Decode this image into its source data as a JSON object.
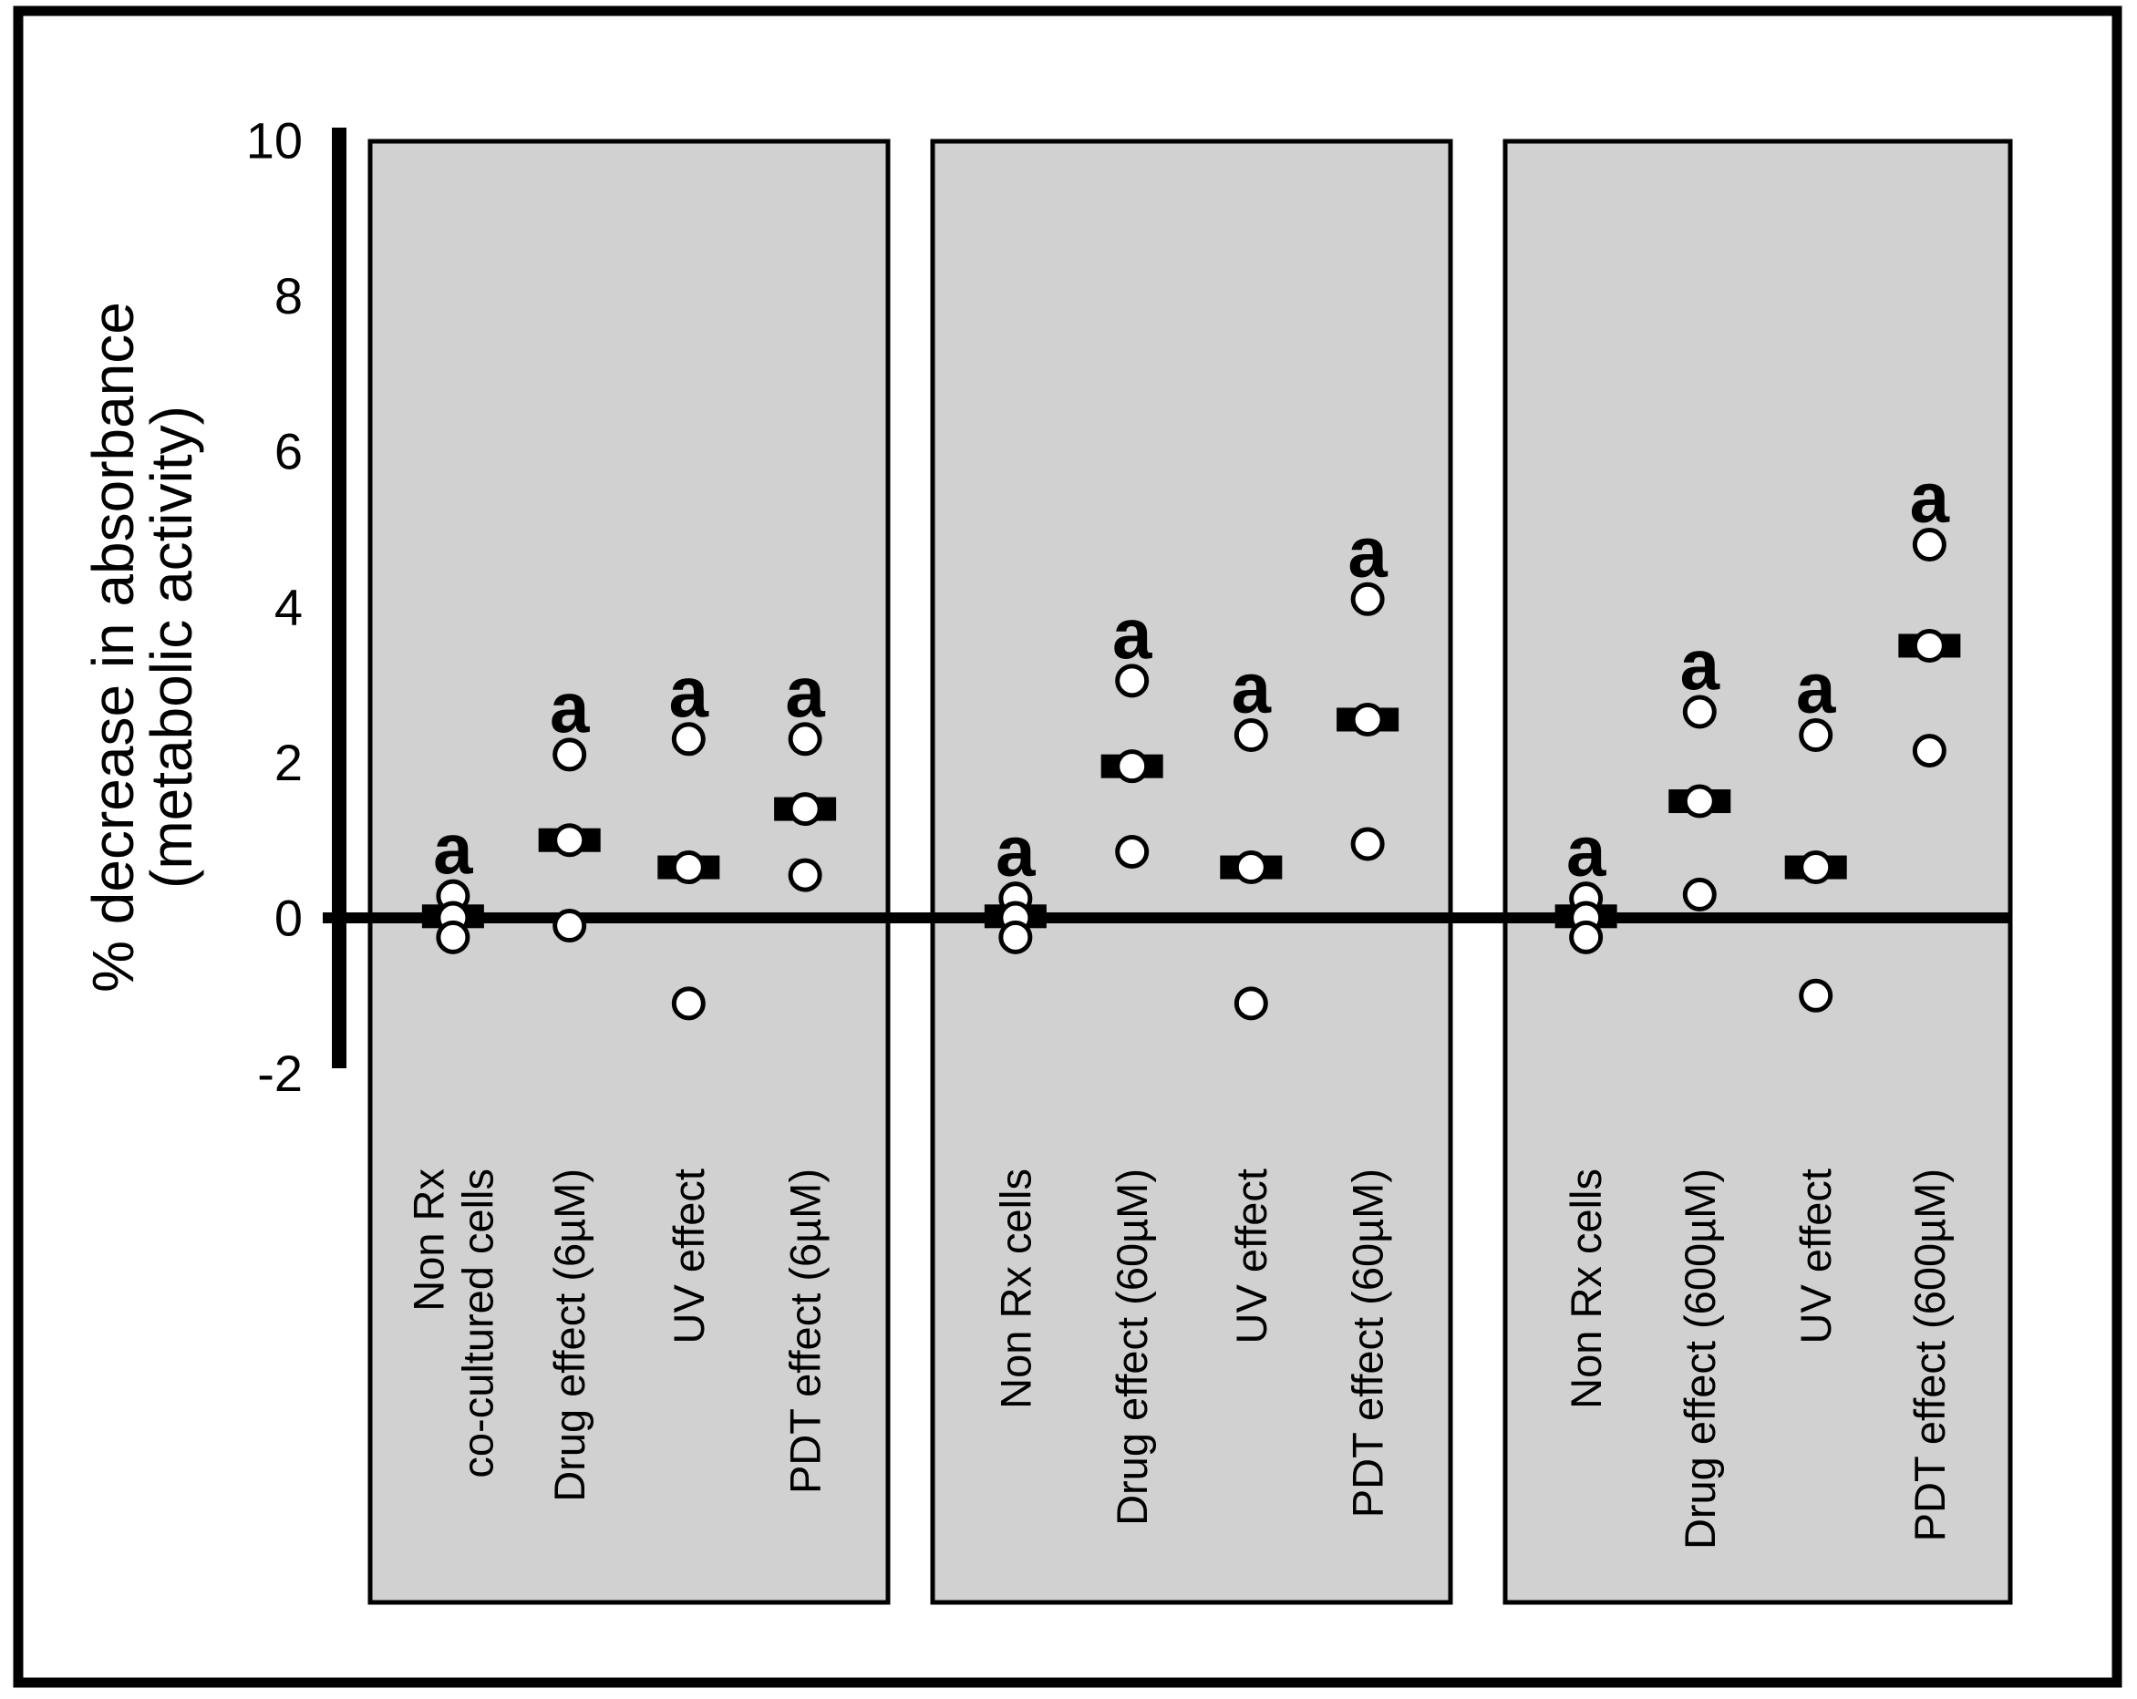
{
  "figure": {
    "description": "Three-panel dot plot of percent decrease in absorbance (metabolic activity) for co-cultured cells under drug, UV and PDT treatments at 6, 60 and 600 micromolar",
    "background_color": "#ffffff",
    "panel_fill_color": "#d1d1d1",
    "line_color": "#000000",
    "point_fill_color": "#ffffff"
  },
  "chart_data": {
    "type": "scatter",
    "title": "",
    "xlabel": "",
    "ylabel": "% decrease in absorbance (metabolic activity)",
    "ylabel_lines": [
      "% decrease in absorbance",
      "(metabolic activity)"
    ],
    "ylim": [
      -2,
      10
    ],
    "yticks": [
      10,
      8,
      6,
      4,
      2,
      0,
      -2
    ],
    "grid": false,
    "legend": "none",
    "significance_marker": "a",
    "marker_style": "open-circle",
    "mean_marker_style": "black-bar",
    "panels": [
      {
        "name": "6uM",
        "categories": [
          {
            "label_lines": [
              "Non Rx",
              "co-cultured cells"
            ],
            "points": [
              0.28,
              0.0,
              -0.25
            ],
            "mean": 0.02,
            "sig": "a"
          },
          {
            "label_lines": [
              "Drug effect (6µM)"
            ],
            "points": [
              2.1,
              1.0,
              -0.1
            ],
            "mean": 1.0,
            "sig": "a"
          },
          {
            "label_lines": [
              "UV effect"
            ],
            "points": [
              2.3,
              0.65,
              -1.1
            ],
            "mean": 0.65,
            "sig": "a"
          },
          {
            "label_lines": [
              "PDT effect (6µM)"
            ],
            "points": [
              2.3,
              1.4,
              0.55
            ],
            "mean": 1.4,
            "sig": "a"
          }
        ]
      },
      {
        "name": "60uM",
        "categories": [
          {
            "label_lines": [
              "Non Rx cells"
            ],
            "points": [
              0.25,
              0.0,
              -0.25
            ],
            "mean": 0.02,
            "sig": "a"
          },
          {
            "label_lines": [
              "Drug effect (60µM)"
            ],
            "points": [
              3.05,
              1.95,
              0.85
            ],
            "mean": 1.95,
            "sig": "a"
          },
          {
            "label_lines": [
              "UV effect"
            ],
            "points": [
              2.35,
              0.65,
              -1.1
            ],
            "mean": 0.65,
            "sig": "a"
          },
          {
            "label_lines": [
              "PDT effect (60µM)"
            ],
            "points": [
              4.1,
              2.55,
              0.95
            ],
            "mean": 2.55,
            "sig": "a"
          }
        ]
      },
      {
        "name": "600uM",
        "categories": [
          {
            "label_lines": [
              "Non Rx cells"
            ],
            "points": [
              0.25,
              0.0,
              -0.25
            ],
            "mean": 0.02,
            "sig": "a"
          },
          {
            "label_lines": [
              "Drug effect (600µM)"
            ],
            "points": [
              2.65,
              1.5,
              0.3
            ],
            "mean": 1.5,
            "sig": "a"
          },
          {
            "label_lines": [
              "UV effect"
            ],
            "points": [
              2.35,
              0.65,
              -1.0
            ],
            "mean": 0.65,
            "sig": "a"
          },
          {
            "label_lines": [
              "PDT effect (600µM)"
            ],
            "points": [
              4.8,
              3.5,
              2.15
            ],
            "mean": 3.5,
            "sig": "a"
          }
        ]
      }
    ]
  }
}
